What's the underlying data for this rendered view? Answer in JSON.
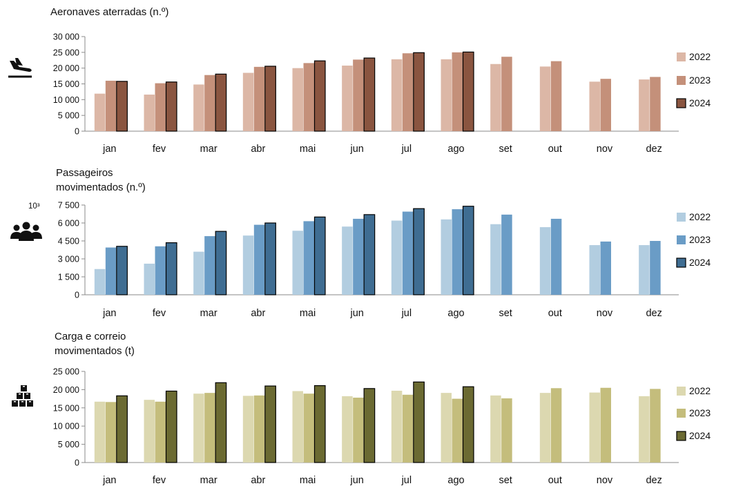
{
  "chart_data": [
    {
      "type": "bar",
      "title_lines": [
        "Aeronaves aterradas (n.º)"
      ],
      "icon": "airplane-landing-icon",
      "categories": [
        "jan",
        "fev",
        "mar",
        "abr",
        "mai",
        "jun",
        "jul",
        "ago",
        "set",
        "out",
        "nov",
        "dez"
      ],
      "ylim": [
        0,
        30000
      ],
      "yticks": [
        0,
        5000,
        10000,
        15000,
        20000,
        25000,
        30000
      ],
      "ytick_labels": [
        "0",
        "5 000",
        "10 000",
        "15 000",
        "20 000",
        "25 000",
        "30 000"
      ],
      "multiplier_label": "",
      "series": [
        {
          "name": "2022",
          "color": "#dcb7a6",
          "values": [
            11900,
            11600,
            14800,
            18500,
            20000,
            20800,
            22800,
            22800,
            21300,
            20500,
            15700,
            16400
          ]
        },
        {
          "name": "2023",
          "color": "#c4907a",
          "values": [
            16000,
            15200,
            17800,
            20400,
            21600,
            22700,
            24700,
            25000,
            23600,
            22200,
            16600,
            17200
          ]
        },
        {
          "name": "2024",
          "color": "#8a5540",
          "values": [
            15800,
            15600,
            18100,
            20600,
            22300,
            23200,
            24900,
            25100,
            null,
            null,
            null,
            null
          ]
        }
      ]
    },
    {
      "type": "bar",
      "title_lines": [
        "Passageiros",
        "movimentados (n.º)"
      ],
      "icon": "passengers-group-icon",
      "categories": [
        "jan",
        "fev",
        "mar",
        "abr",
        "mai",
        "jun",
        "jul",
        "ago",
        "set",
        "out",
        "nov",
        "dez"
      ],
      "ylim": [
        0,
        7500
      ],
      "yticks": [
        0,
        1500,
        3000,
        4500,
        6000,
        7500
      ],
      "ytick_labels": [
        "0",
        "1 500",
        "3 000",
        "4 500",
        "6 000",
        "7 500"
      ],
      "multiplier_label": "10³",
      "series": [
        {
          "name": "2022",
          "color": "#b2cde0",
          "values": [
            2150,
            2600,
            3600,
            4950,
            5350,
            5700,
            6200,
            6300,
            5900,
            5650,
            4150,
            4150
          ]
        },
        {
          "name": "2023",
          "color": "#6a9cc6",
          "values": [
            3950,
            4050,
            4900,
            5850,
            6150,
            6350,
            6950,
            7150,
            6700,
            6350,
            4450,
            4500
          ]
        },
        {
          "name": "2024",
          "color": "#3f6d92",
          "values": [
            4050,
            4350,
            5300,
            6000,
            6500,
            6700,
            7200,
            7400,
            null,
            null,
            null,
            null
          ]
        }
      ]
    },
    {
      "type": "bar",
      "title_lines": [
        "Carga e correio",
        "movimentados (t)"
      ],
      "icon": "cargo-boxes-icon",
      "categories": [
        "jan",
        "fev",
        "mar",
        "abr",
        "mai",
        "jun",
        "jul",
        "ago",
        "set",
        "out",
        "nov",
        "dez"
      ],
      "ylim": [
        0,
        25000
      ],
      "yticks": [
        0,
        5000,
        10000,
        15000,
        20000,
        25000
      ],
      "ytick_labels": [
        "0",
        "5 000",
        "10 000",
        "15 000",
        "20 000",
        "25 000"
      ],
      "multiplier_label": "",
      "series": [
        {
          "name": "2022",
          "color": "#dcd8b0",
          "values": [
            16700,
            17200,
            18900,
            18300,
            19600,
            18200,
            19700,
            19100,
            18400,
            19100,
            19200,
            18200
          ]
        },
        {
          "name": "2023",
          "color": "#c4bd7c",
          "values": [
            16600,
            16700,
            19100,
            18400,
            18900,
            17800,
            18600,
            17500,
            17600,
            20400,
            20500,
            20200
          ]
        },
        {
          "name": "2024",
          "color": "#6b6a32",
          "values": [
            18300,
            19600,
            21900,
            21000,
            21100,
            20300,
            22100,
            20800,
            null,
            null,
            null,
            null
          ]
        }
      ]
    }
  ]
}
